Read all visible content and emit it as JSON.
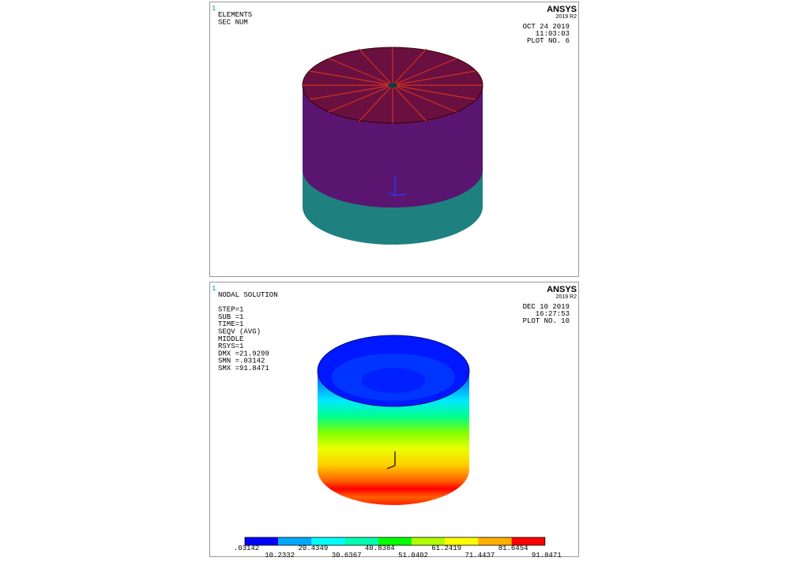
{
  "panels": [
    {
      "window_number": "1",
      "brand": "ANSYS",
      "version": "2019 R2",
      "info": [
        "ELEMENTS",
        "SEC  NUM"
      ],
      "stamp": [
        "OCT 24 2019",
        "11:03:03",
        "PLOT NO.   6"
      ]
    },
    {
      "window_number": "1",
      "brand": "ANSYS",
      "version": "2019 R2",
      "info": [
        "NODAL SOLUTION",
        "",
        "STEP=1",
        "SUB =1",
        "TIME=1",
        "SEQV      (AVG)",
        "MIDDLE",
        "RSYS=1",
        "DMX =21.9299",
        "SMN =.03142",
        "SMX =91.8471"
      ],
      "stamp": [
        "DEC 10 2019",
        "16:27:53",
        "PLOT NO.  10"
      ],
      "legend": {
        "labels": [
          ".03142",
          "10.2332",
          "20.4349",
          "30.6367",
          "40.8384",
          "51.0402",
          "61.2419",
          "71.4437",
          "81.6454",
          "91.8471"
        ],
        "colors": [
          "#0000ff",
          "#00a8ff",
          "#00ffff",
          "#00ffb0",
          "#00ff00",
          "#b0ff00",
          "#ffff00",
          "#ffb000",
          "#ff0000"
        ]
      }
    }
  ]
}
